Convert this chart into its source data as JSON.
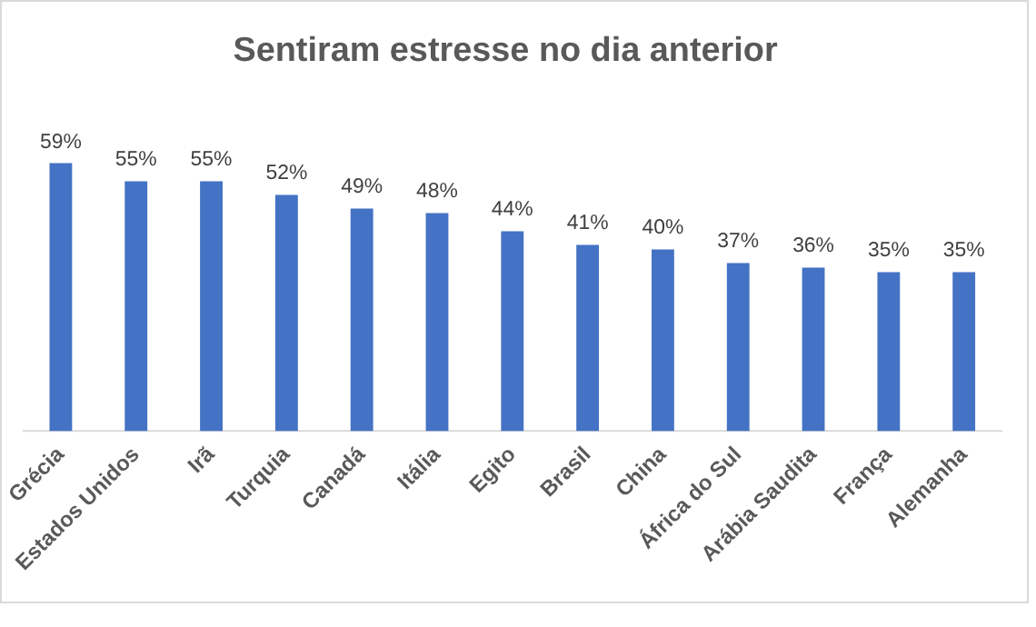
{
  "chart_data": {
    "type": "bar",
    "title": "Sentiram estresse no dia anterior",
    "categories": [
      "Grécia",
      "Estados Unidos",
      "Irã",
      "Turquia",
      "Canadá",
      "Itália",
      "Egito",
      "Brasil",
      "China",
      "África do Sul",
      "Arábia Saudita",
      "França",
      "Alemanha"
    ],
    "values": [
      59,
      55,
      55,
      52,
      49,
      48,
      44,
      41,
      40,
      37,
      36,
      35,
      35
    ],
    "value_labels": [
      "59%",
      "55%",
      "55%",
      "52%",
      "49%",
      "48%",
      "44%",
      "41%",
      "40%",
      "37%",
      "36%",
      "35%",
      "35%"
    ],
    "color": "#4472c4",
    "tick_labels": "x"
  }
}
